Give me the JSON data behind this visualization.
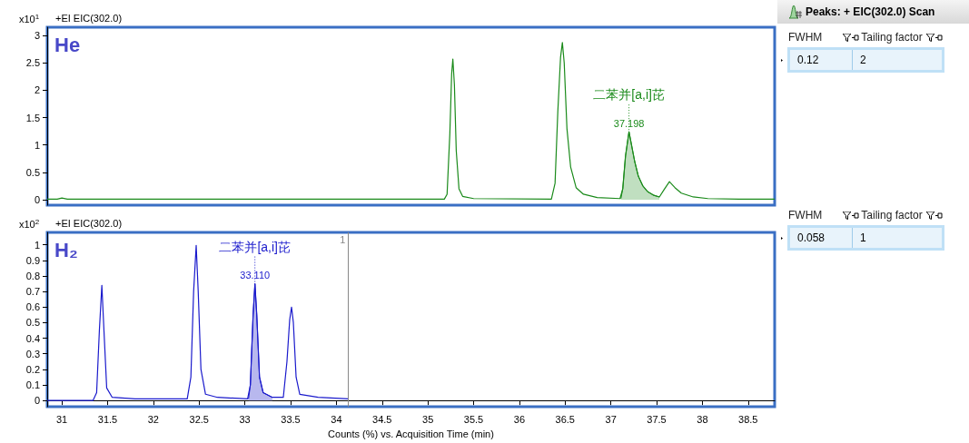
{
  "chart_data": [
    {
      "type": "line",
      "title": "+EI EIC(302.0)",
      "ylabel": "x10$^{1}$",
      "xlim": [
        30.84,
        38.79
      ],
      "ylim": [
        -0.1,
        3.15
      ],
      "yticks": [
        0,
        0.5,
        1,
        1.5,
        2,
        2.5,
        3
      ],
      "tick_labels": "y",
      "marker": "none",
      "annotations": [
        "He",
        {
          "text": "37.198",
          "x": 37.198,
          "y": 1.24
        },
        {
          "text": "二苯并[a,i]芘",
          "x": 37.198,
          "y": 1.24
        }
      ],
      "series": [
        {
          "color": "#1a8a1a",
          "x": [
            30.84,
            30.95,
            31.0,
            31.06,
            35.18,
            35.21,
            35.24,
            35.26,
            35.273,
            35.29,
            35.31,
            35.34,
            35.38,
            35.5,
            36.35,
            36.39,
            36.42,
            36.45,
            36.47,
            36.49,
            36.52,
            36.56,
            36.62,
            36.7,
            36.85,
            37.1,
            37.13,
            37.16,
            37.198,
            37.22,
            37.26,
            37.3,
            37.35,
            37.4,
            37.47,
            37.53,
            37.58,
            37.64,
            37.7,
            37.77,
            37.9,
            38.06,
            38.4,
            38.79
          ],
          "values": [
            0.01,
            0.01,
            0.03,
            0.01,
            0.01,
            0.1,
            1.2,
            2.3,
            2.57,
            2.1,
            0.9,
            0.2,
            0.06,
            0.02,
            0.01,
            0.3,
            1.6,
            2.6,
            2.87,
            2.5,
            1.3,
            0.6,
            0.22,
            0.1,
            0.04,
            0.02,
            0.2,
            0.8,
            1.24,
            1.05,
            0.7,
            0.43,
            0.25,
            0.15,
            0.08,
            0.05,
            0.18,
            0.33,
            0.22,
            0.12,
            0.05,
            0.02,
            0.01,
            0.01
          ]
        },
        {
          "type": "area",
          "color": "#c0dfc0",
          "x": [
            37.11,
            37.13,
            37.16,
            37.198,
            37.22,
            37.26,
            37.3,
            37.35,
            37.4,
            37.47,
            37.53
          ],
          "values": [
            0.02,
            0.2,
            0.8,
            1.24,
            1.05,
            0.7,
            0.43,
            0.25,
            0.15,
            0.08,
            0.05
          ]
        }
      ]
    },
    {
      "type": "line",
      "title": "+EI EIC(302.0)",
      "ylabel": "x10$^{2}$",
      "xlabel": "Counts (%) vs. Acquisition Time (min)",
      "xlim": [
        30.84,
        38.79
      ],
      "xticks": [
        31,
        31.5,
        32,
        32.5,
        33,
        33.5,
        34,
        34.5,
        35,
        35.5,
        36,
        36.5,
        37,
        37.5,
        38,
        38.5
      ],
      "ylim": [
        -0.04,
        1.08
      ],
      "yticks": [
        0,
        0.1,
        0.2,
        0.3,
        0.4,
        0.5,
        0.6,
        0.7,
        0.8,
        0.9,
        1
      ],
      "marker": "none",
      "annotations": [
        "H₂",
        {
          "text": "33.110",
          "x": 33.11,
          "y": 0.75
        },
        {
          "text": "二苯并[a,i]芘",
          "x": 33.11,
          "y": 0.75
        },
        {
          "text": "1",
          "x": 34.13,
          "y": 1.08
        }
      ],
      "ref_lines": [
        {
          "axis": "x",
          "value": 34.13,
          "color": "#888888"
        }
      ],
      "series": [
        {
          "color": "#1a1acc",
          "x": [
            30.84,
            31.34,
            31.38,
            31.41,
            31.437,
            31.46,
            31.49,
            31.55,
            31.8,
            32.37,
            32.41,
            32.44,
            32.468,
            32.49,
            32.52,
            32.57,
            32.7,
            33.03,
            33.06,
            33.09,
            33.11,
            33.13,
            33.16,
            33.2,
            33.3,
            33.42,
            33.46,
            33.49,
            33.51,
            33.53,
            33.56,
            33.6,
            33.8,
            34.13
          ],
          "values": [
            0,
            0,
            0.05,
            0.45,
            0.74,
            0.45,
            0.08,
            0.02,
            0.01,
            0.01,
            0.15,
            0.7,
            0.996,
            0.7,
            0.2,
            0.04,
            0.02,
            0.01,
            0.1,
            0.55,
            0.75,
            0.55,
            0.15,
            0.05,
            0.02,
            0.02,
            0.25,
            0.52,
            0.6,
            0.5,
            0.15,
            0.04,
            0.02,
            0.01
          ]
        },
        {
          "type": "area",
          "color": "#b8b8ee",
          "x": [
            33.04,
            33.06,
            33.09,
            33.11,
            33.13,
            33.16,
            33.2,
            33.3
          ],
          "values": [
            0.01,
            0.1,
            0.55,
            0.75,
            0.55,
            0.15,
            0.05,
            0.02
          ]
        }
      ]
    },
    {
      "type": "other",
      "title": "Peaks: + EIC(302.0) Scan",
      "categories": [
        "FWHM",
        "Tailing factor"
      ],
      "values": [
        0.12,
        2
      ],
      "data_labels": true
    },
    {
      "type": "other",
      "categories": [
        "FWHM",
        "Tailing factor"
      ],
      "values": [
        0.058,
        1
      ],
      "data_labels": true
    }
  ]
}
